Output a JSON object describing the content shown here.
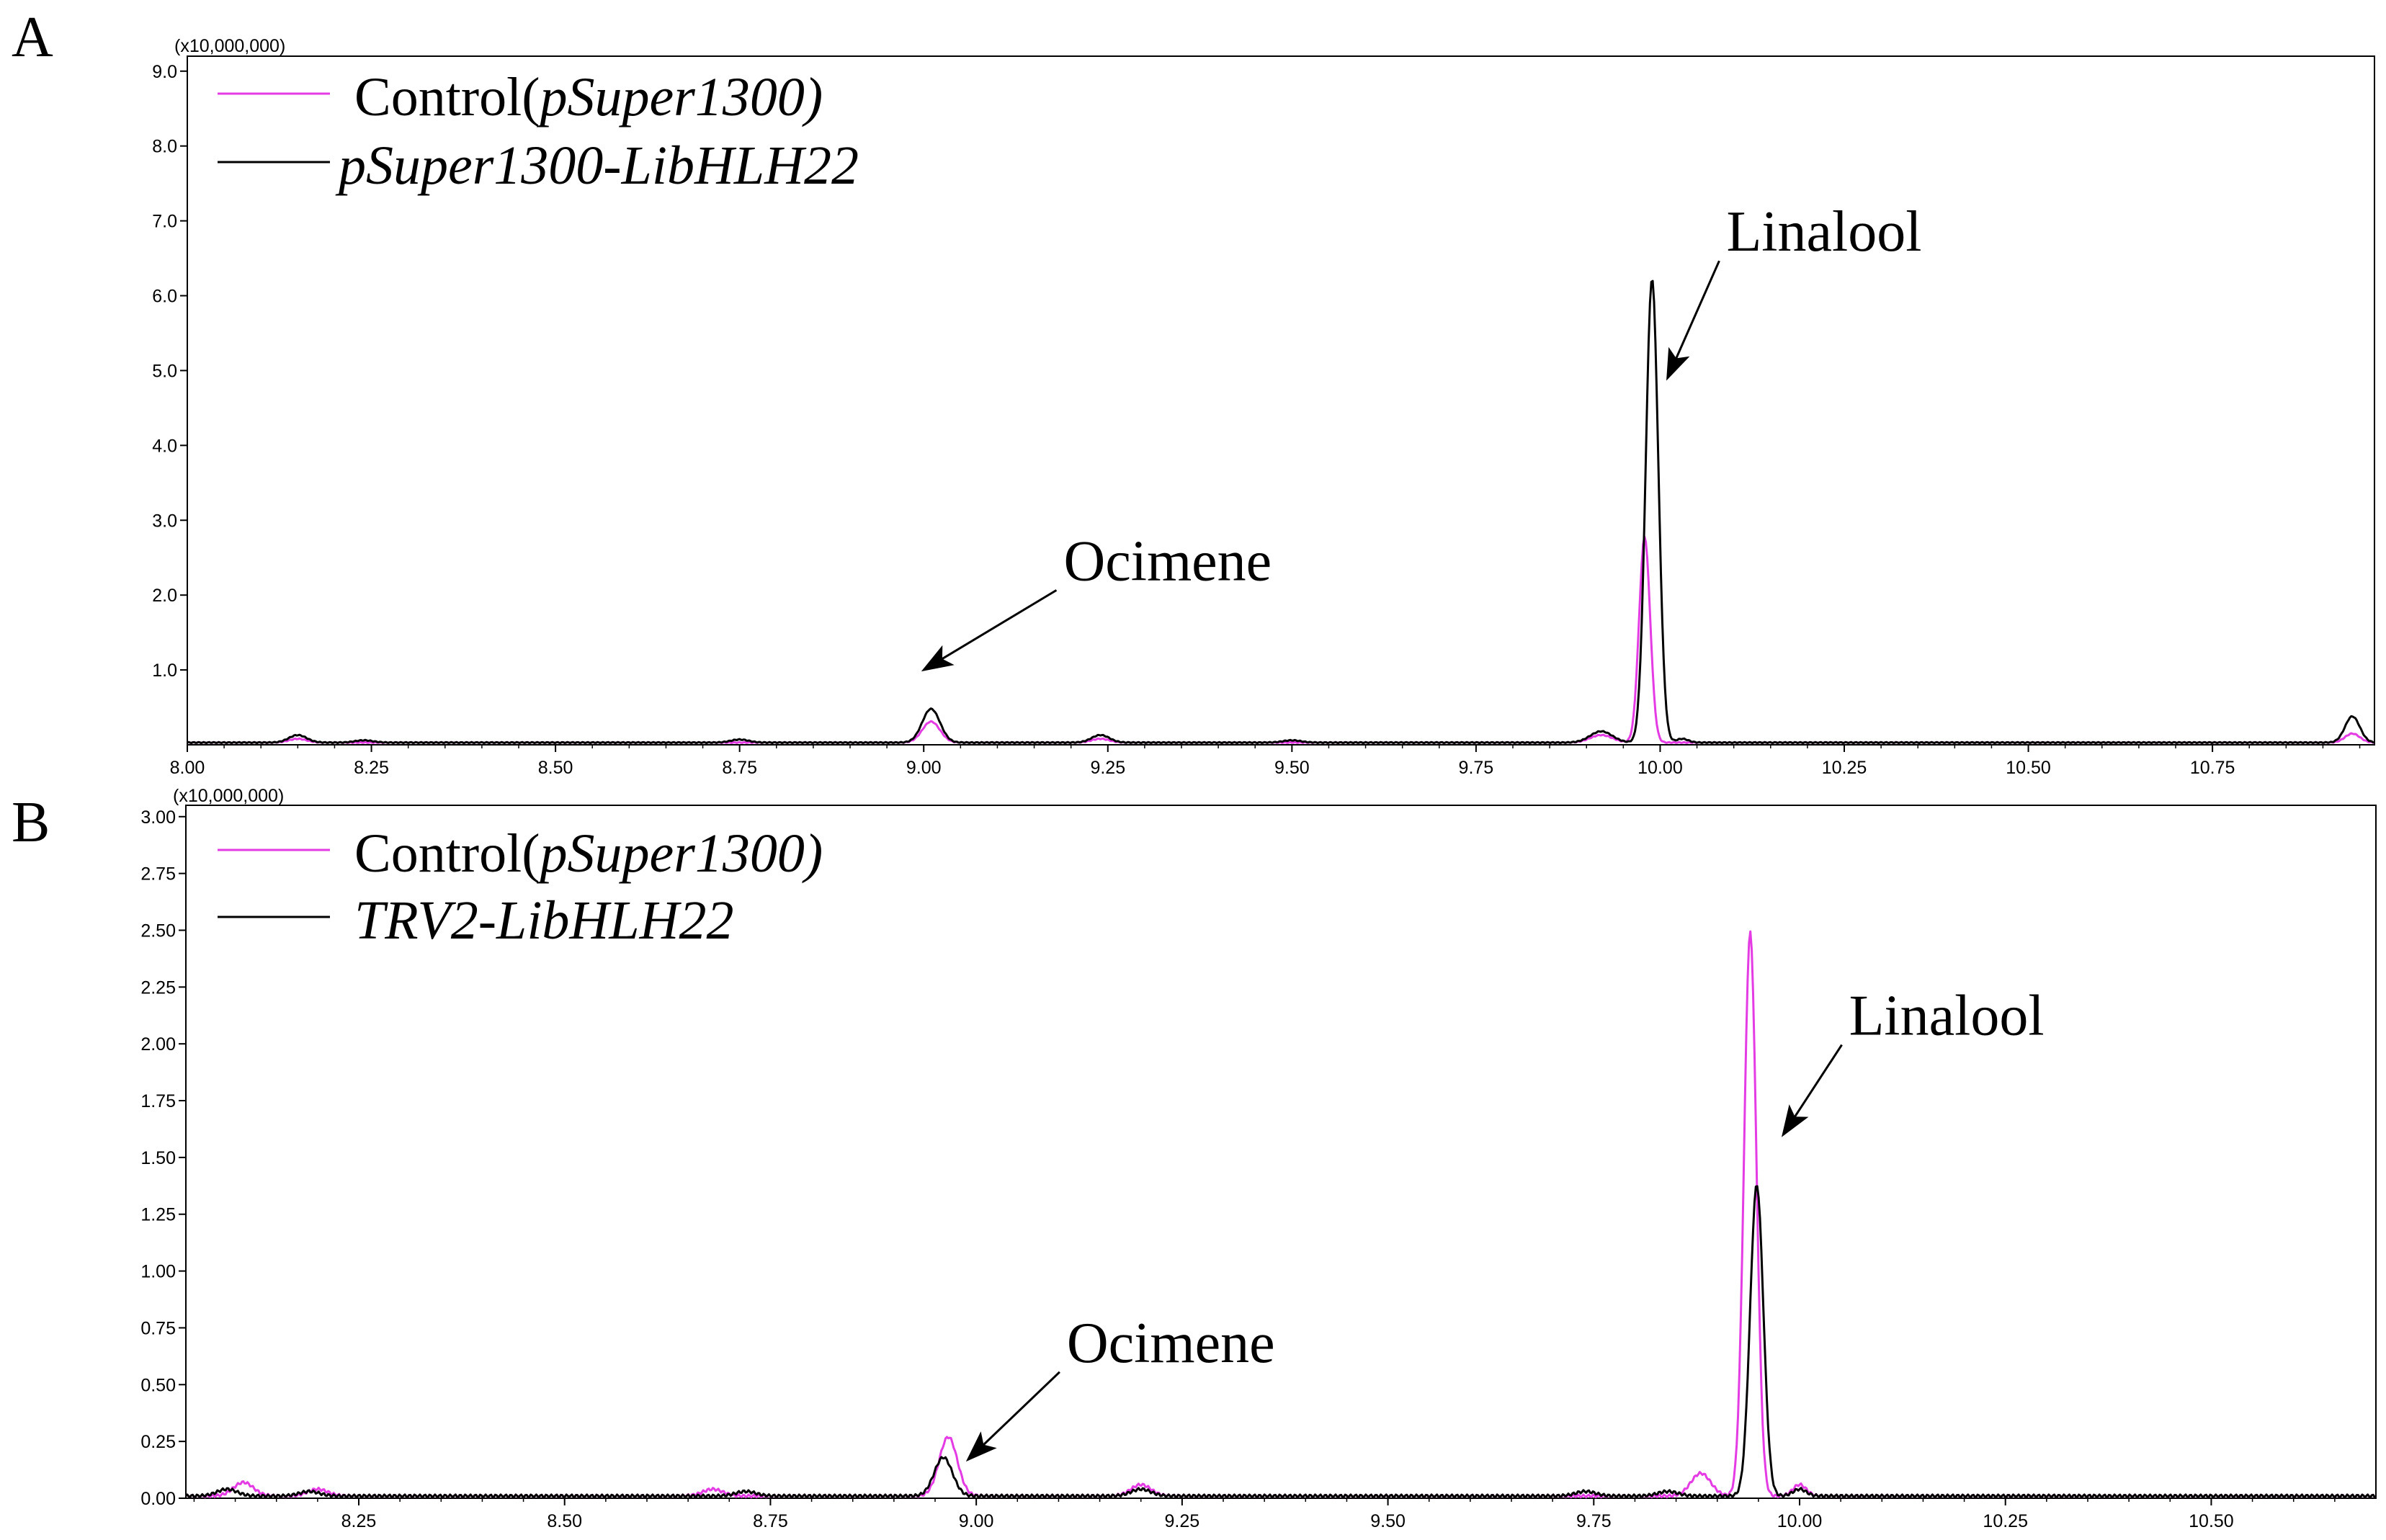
{
  "figure": {
    "panels": [
      "A",
      "B"
    ]
  },
  "colors": {
    "control": "#e43be4",
    "treatment": "#000000",
    "axis": "#000000"
  },
  "chart_data": [
    {
      "id": "A",
      "type": "line",
      "panel_label": "A",
      "scale_label": "(x10,000,000)",
      "xlim": [
        8.0,
        10.97
      ],
      "ylim": [
        0,
        9.2
      ],
      "xticks": [
        8.0,
        8.25,
        8.5,
        8.75,
        9.0,
        9.25,
        9.5,
        9.75,
        10.0,
        10.25,
        10.5,
        10.75
      ],
      "xtick_labels": [
        "8.00",
        "8.25",
        "8.50",
        "8.75",
        "9.00",
        "9.25",
        "9.50",
        "9.75",
        "10.00",
        "10.25",
        "10.50",
        "10.75"
      ],
      "yticks": [
        1,
        2,
        3,
        4,
        5,
        6,
        7,
        8,
        9
      ],
      "ytick_labels": [
        "1.0",
        "2.0",
        "3.0",
        "4.0",
        "5.0",
        "6.0",
        "7.0",
        "8.0",
        "9.0"
      ],
      "legend": [
        {
          "prefix": "Control(",
          "italic": "pSuper1300",
          "suffix": ")",
          "color": "#e43be4"
        },
        {
          "prefix": "",
          "italic": "pSuper1300-LibHLH22",
          "suffix": "",
          "color": "#000000"
        }
      ],
      "annotations": [
        {
          "text": "Ocimene",
          "x": 9.0,
          "y": 1.0,
          "text_x": 9.19,
          "text_y": 2.2
        },
        {
          "text": "Linalool",
          "x": 10.01,
          "y": 4.9,
          "text_x": 10.09,
          "text_y": 6.6
        }
      ],
      "series": [
        {
          "name": "Control(pSuper1300)",
          "color": "#e43be4",
          "baseline": 0.03,
          "peaks": [
            [
              8.15,
              0.05,
              0.012
            ],
            [
              9.01,
              0.28,
              0.012
            ],
            [
              9.24,
              0.05,
              0.012
            ],
            [
              9.92,
              0.1,
              0.015
            ],
            [
              9.979,
              2.75,
              0.0075
            ],
            [
              10.94,
              0.12,
              0.01
            ]
          ]
        },
        {
          "name": "pSuper1300-LibHLH22",
          "color": "#000000",
          "baseline": 0.03,
          "peaks": [
            [
              8.15,
              0.1,
              0.012
            ],
            [
              8.24,
              0.03,
              0.012
            ],
            [
              8.75,
              0.04,
              0.012
            ],
            [
              9.01,
              0.45,
              0.012
            ],
            [
              9.24,
              0.1,
              0.012
            ],
            [
              9.5,
              0.03,
              0.012
            ],
            [
              9.92,
              0.15,
              0.015
            ],
            [
              9.989,
              6.2,
              0.0085
            ],
            [
              10.03,
              0.05,
              0.008
            ],
            [
              10.94,
              0.35,
              0.01
            ]
          ]
        }
      ]
    },
    {
      "id": "B",
      "type": "line",
      "panel_label": "B",
      "scale_label": "(x10,000,000)",
      "xlim": [
        8.04,
        10.7
      ],
      "ylim": [
        0,
        3.05
      ],
      "xticks": [
        8.25,
        8.5,
        8.75,
        9.0,
        9.25,
        9.5,
        9.75,
        10.0,
        10.25,
        10.5
      ],
      "xtick_labels": [
        "8.25",
        "8.50",
        "8.75",
        "9.00",
        "9.25",
        "9.50",
        "9.75",
        "10.00",
        "10.25",
        "10.50"
      ],
      "yticks": [
        0,
        0.25,
        0.5,
        0.75,
        1.0,
        1.25,
        1.5,
        1.75,
        2.0,
        2.25,
        2.5,
        2.75,
        3.0
      ],
      "ytick_labels": [
        "0.00",
        "0.25",
        "0.50",
        "0.75",
        "1.00",
        "1.25",
        "1.50",
        "1.75",
        "2.00",
        "2.25",
        "2.50",
        "2.75",
        "3.00"
      ],
      "legend": [
        {
          "prefix": "Control(",
          "italic": "pSuper1300",
          "suffix": ")",
          "color": "#e43be4"
        },
        {
          "prefix": "",
          "italic": "TRV2-LibHLH22",
          "suffix": "",
          "color": "#000000"
        }
      ],
      "annotations": [
        {
          "text": "Ocimene",
          "x": 8.99,
          "y": 0.17,
          "text_x": 9.11,
          "text_y": 0.6
        },
        {
          "text": "Linalool",
          "x": 9.98,
          "y": 1.6,
          "text_x": 10.06,
          "text_y": 2.04
        }
      ],
      "series": [
        {
          "name": "Control(pSuper1300)",
          "color": "#e43be4",
          "baseline": 0.01,
          "peaks": [
            [
              8.11,
              0.06,
              0.012
            ],
            [
              8.2,
              0.03,
              0.012
            ],
            [
              8.68,
              0.03,
              0.012
            ],
            [
              8.966,
              0.26,
              0.011
            ],
            [
              9.2,
              0.05,
              0.012
            ],
            [
              9.88,
              0.1,
              0.012
            ],
            [
              9.94,
              2.48,
              0.0075
            ],
            [
              10.0,
              0.05,
              0.008
            ]
          ]
        },
        {
          "name": "TRV2-LibHLH22",
          "color": "#000000",
          "baseline": 0.01,
          "peaks": [
            [
              8.09,
              0.03,
              0.012
            ],
            [
              8.19,
              0.02,
              0.012
            ],
            [
              8.72,
              0.02,
              0.012
            ],
            [
              8.96,
              0.17,
              0.011
            ],
            [
              9.2,
              0.03,
              0.012
            ],
            [
              9.74,
              0.02,
              0.012
            ],
            [
              9.84,
              0.02,
              0.012
            ],
            [
              9.948,
              1.37,
              0.008
            ],
            [
              10.0,
              0.03,
              0.008
            ]
          ]
        }
      ]
    }
  ]
}
